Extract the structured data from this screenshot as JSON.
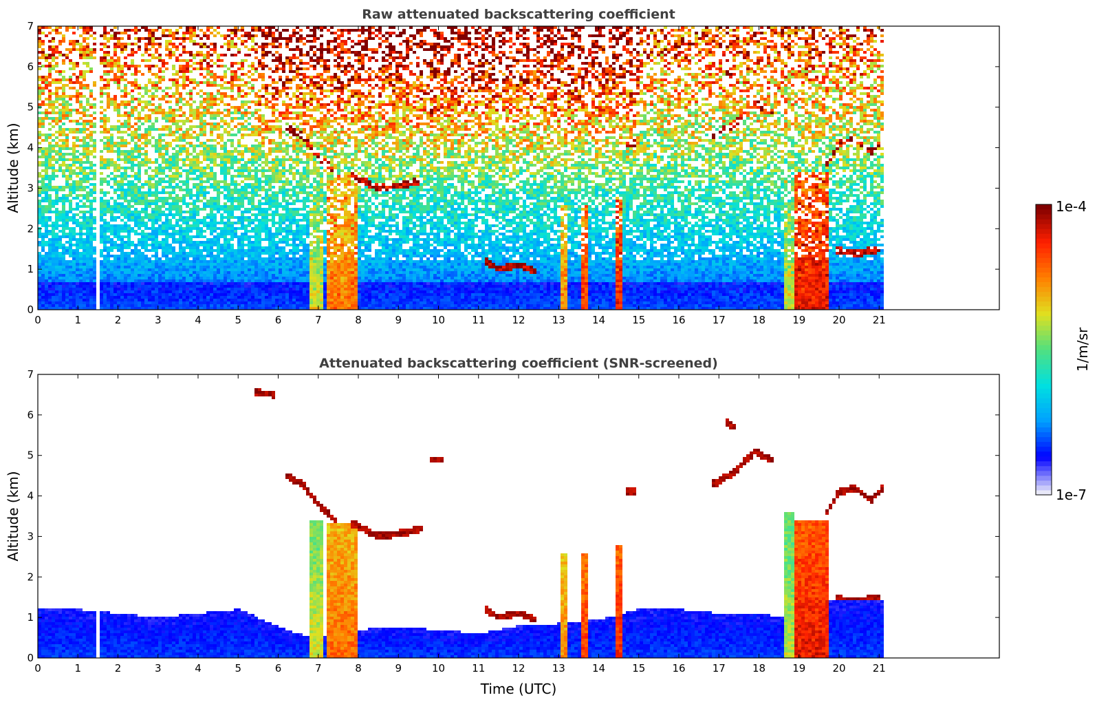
{
  "chart_data": [
    {
      "type": "heatmap",
      "title": "Raw attenuated backscattering coefficient",
      "ylabel": "Altitude (km)",
      "xlabel": "",
      "xlim": [
        0,
        24
      ],
      "ylim": [
        0,
        7
      ],
      "data_end_x": 21.1,
      "x_ticks": [
        "0",
        "1",
        "2",
        "3",
        "4",
        "5",
        "6",
        "7",
        "8",
        "9",
        "10",
        "11",
        "12",
        "13",
        "14",
        "15",
        "16",
        "17",
        "18",
        "19",
        "20",
        "21"
      ],
      "y_ticks": [
        "0",
        "1",
        "2",
        "3",
        "4",
        "5",
        "6",
        "7"
      ],
      "gaps": [
        {
          "x0": 1.42,
          "x1": 1.55
        }
      ],
      "precip_columns": [
        {
          "x0": 6.8,
          "x1": 7.15,
          "top": 3.4,
          "level": 0.62
        },
        {
          "x0": 7.25,
          "x1": 7.95,
          "top": 3.3,
          "level": 0.78
        },
        {
          "x0": 13.05,
          "x1": 13.18,
          "top": 2.6,
          "level": 0.75
        },
        {
          "x0": 13.55,
          "x1": 13.7,
          "top": 2.6,
          "level": 0.85
        },
        {
          "x0": 14.42,
          "x1": 14.62,
          "top": 2.8,
          "level": 0.88
        },
        {
          "x0": 18.6,
          "x1": 18.9,
          "top": 3.6,
          "level": 0.6
        },
        {
          "x0": 18.9,
          "x1": 19.75,
          "top": 3.4,
          "level": 0.9
        }
      ],
      "cloud_layers": [
        {
          "x": [
            6.2,
            6.6,
            7.0,
            7.4
          ],
          "y": [
            4.5,
            4.3,
            3.8,
            3.4
          ]
        },
        {
          "x": [
            7.9,
            8.5,
            9.2,
            9.6
          ],
          "y": [
            3.3,
            3.0,
            3.1,
            3.2
          ]
        },
        {
          "x": [
            9.8,
            10.1
          ],
          "y": [
            4.9,
            4.9
          ]
        },
        {
          "x": [
            5.5,
            5.9
          ],
          "y": [
            6.55,
            6.5
          ]
        },
        {
          "x": [
            11.2,
            11.5,
            12.0,
            12.4
          ],
          "y": [
            1.2,
            1.0,
            1.1,
            0.95
          ]
        },
        {
          "x": [
            14.7,
            14.9
          ],
          "y": [
            4.1,
            4.1
          ]
        },
        {
          "x": [
            16.9,
            17.4,
            17.9,
            18.3
          ],
          "y": [
            4.3,
            4.6,
            5.1,
            4.9
          ]
        },
        {
          "x": [
            17.2,
            17.4
          ],
          "y": [
            5.8,
            5.7
          ]
        },
        {
          "x": [
            19.7,
            20.0,
            20.4,
            20.8,
            21.1
          ],
          "y": [
            3.6,
            4.1,
            4.2,
            3.9,
            4.2
          ]
        },
        {
          "x": [
            20.0,
            20.5,
            21.0
          ],
          "y": [
            1.45,
            1.4,
            1.5
          ]
        }
      ]
    },
    {
      "type": "heatmap",
      "title": "Attenuated backscattering coefficient (SNR-screened)",
      "ylabel": "Altitude (km)",
      "xlabel": "Time (UTC)",
      "xlim": [
        0,
        24
      ],
      "ylim": [
        0,
        7
      ],
      "data_end_x": 21.1,
      "x_ticks": [
        "0",
        "1",
        "2",
        "3",
        "4",
        "5",
        "6",
        "7",
        "8",
        "9",
        "10",
        "11",
        "12",
        "13",
        "14",
        "15",
        "16",
        "17",
        "18",
        "19",
        "20",
        "21"
      ],
      "y_ticks": [
        "0",
        "1",
        "2",
        "3",
        "4",
        "5",
        "6",
        "7"
      ],
      "boundary_layer_top": {
        "x": [
          0,
          1,
          2,
          3,
          4,
          5,
          5.5,
          6,
          6.5,
          6.8,
          8,
          9,
          10,
          11,
          12,
          13,
          14,
          15,
          16,
          17,
          18,
          18.6,
          19.8,
          20.5,
          21.1
        ],
        "y": [
          1.2,
          1.2,
          1.1,
          1.0,
          1.1,
          1.2,
          1.0,
          0.8,
          0.6,
          0.5,
          0.7,
          0.75,
          0.7,
          0.6,
          0.8,
          0.85,
          0.95,
          1.2,
          1.2,
          1.1,
          1.1,
          1.0,
          1.4,
          1.4,
          1.45
        ]
      }
    }
  ],
  "colorbar": {
    "label": "1/m/sr",
    "max_label": "1e-4",
    "min_label": "1e-7",
    "colormap": [
      "#e8e8f8",
      "#0000ff",
      "#00a0ff",
      "#00e0e0",
      "#50e080",
      "#e0e020",
      "#ff8000",
      "#ff2000",
      "#800000"
    ]
  }
}
